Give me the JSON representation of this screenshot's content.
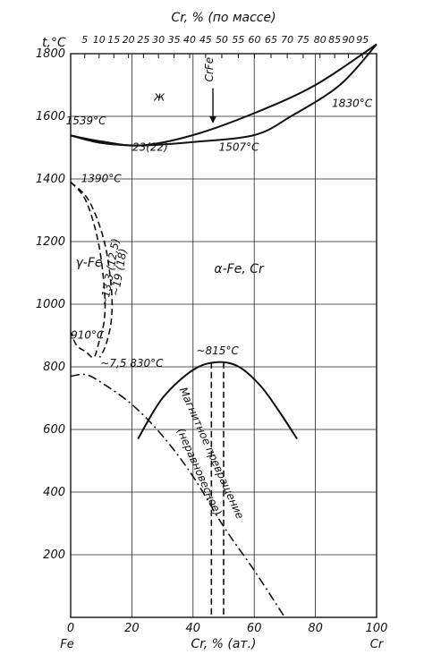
{
  "chart_data": {
    "type": "line",
    "title": "",
    "top_axis": {
      "label": "Cr, % (по массе)",
      "ticks": [
        "5",
        "10",
        "15",
        "20",
        "25",
        "30",
        "35",
        "40",
        "45",
        "50",
        "55",
        "60",
        "65",
        "70",
        "75",
        "80",
        "85",
        "90",
        "95"
      ],
      "ticks_at_pct": [
        4.6,
        9.3,
        14.1,
        18.9,
        23.8,
        28.7,
        33.8,
        38.9,
        44.1,
        49.4,
        54.8,
        60.1,
        65.5,
        70.8,
        76.0,
        81.5,
        86.3,
        90.8,
        95.4
      ]
    },
    "x_axis": {
      "label": "Cr, % (ат.)",
      "range": [
        0,
        100
      ],
      "ticks": [
        0,
        20,
        40,
        60,
        80,
        100
      ],
      "tick_labels": [
        "0",
        "20",
        "40",
        "60",
        "80",
        "100"
      ],
      "left_end_label": "Fe",
      "right_end_label": "Cr"
    },
    "y_axis": {
      "label": "t,°C",
      "range": [
        0,
        1800
      ],
      "ticks": [
        200,
        400,
        600,
        800,
        1000,
        1200,
        1400,
        1600,
        1800
      ],
      "tick_labels": [
        "200",
        "400",
        "600",
        "800",
        "1000",
        "1200",
        "1400",
        "1600",
        "1800"
      ]
    },
    "grid": {
      "vertical_at_pct": [
        20.0,
        40.0,
        60.0,
        80.0
      ],
      "horizontal_every": 200,
      "vertical_at": [
        5.0,
        10.8,
        18.0,
        24.2,
        29.5,
        35.6,
        41.8,
        47.0,
        54.7,
        64.0,
        74.0,
        86.0,
        97.0
      ]
    },
    "series": [
      {
        "style": "solid",
        "points": [
          [
            0,
            1539
          ],
          [
            10,
            1520
          ],
          [
            23,
            1507
          ],
          [
            40,
            1540
          ],
          [
            60,
            1610
          ],
          [
            80,
            1700
          ],
          [
            100,
            1830
          ]
        ]
      },
      {
        "style": "solid",
        "points": [
          [
            0,
            1539
          ],
          [
            10,
            1515
          ],
          [
            23,
            1507
          ],
          [
            40,
            1518
          ],
          [
            60,
            1540
          ],
          [
            72,
            1600
          ],
          [
            88,
            1700
          ],
          [
            100,
            1830
          ]
        ]
      },
      {
        "style": "dashed",
        "points": [
          [
            72,
            1600
          ],
          [
            88,
            1700
          ],
          [
            100,
            1830
          ]
        ]
      },
      {
        "style": "dashed",
        "points": [
          [
            0,
            1390
          ],
          [
            5,
            1330
          ],
          [
            9,
            1200
          ],
          [
            11,
            1050
          ],
          [
            11,
            950
          ],
          [
            9,
            870
          ],
          [
            7.5,
            830
          ],
          [
            5,
            848
          ],
          [
            2,
            868
          ],
          [
            0,
            910
          ]
        ]
      },
      {
        "style": "dashed",
        "points": [
          [
            0,
            1390
          ],
          [
            6,
            1330
          ],
          [
            11,
            1200
          ],
          [
            13.3,
            1050
          ],
          [
            13.3,
            950
          ],
          [
            11.5,
            870
          ],
          [
            9.5,
            830
          ]
        ]
      },
      {
        "style": "solid",
        "points": [
          [
            22,
            570
          ],
          [
            30,
            700
          ],
          [
            40,
            790
          ],
          [
            48,
            815
          ],
          [
            55,
            800
          ],
          [
            62,
            740
          ],
          [
            68,
            660
          ],
          [
            74,
            570
          ]
        ]
      },
      {
        "style": "dashed",
        "points": [
          [
            46,
            815
          ],
          [
            46,
            0
          ]
        ]
      },
      {
        "style": "dashed",
        "points": [
          [
            50,
            815
          ],
          [
            50,
            0
          ]
        ]
      },
      {
        "style": "dashdot",
        "points": [
          [
            0,
            770
          ],
          [
            5,
            775
          ],
          [
            10,
            750
          ],
          [
            20,
            680
          ],
          [
            30,
            580
          ],
          [
            40,
            450
          ],
          [
            50,
            290
          ],
          [
            60,
            150
          ],
          [
            70,
            0
          ]
        ]
      }
    ],
    "annotations": [
      {
        "text": "ж",
        "x": 29,
        "y": 1650
      },
      {
        "text": "CrFe",
        "x": 46.5,
        "y": 1710
      },
      {
        "text": "1539°C",
        "x": 5,
        "y": 1575
      },
      {
        "text": "23(22)",
        "x": 26,
        "y": 1490
      },
      {
        "text": "1507°C",
        "x": 55,
        "y": 1490
      },
      {
        "text": "1830°C",
        "x": 92,
        "y": 1630
      },
      {
        "text": "1390°C",
        "x": 10,
        "y": 1390
      },
      {
        "text": "γ-Fe",
        "x": 6,
        "y": 1120
      },
      {
        "text": "~13,3 (12,5)",
        "x": 14,
        "y": 1100
      },
      {
        "text": "~19 (18)",
        "x": 17,
        "y": 1100
      },
      {
        "text": "α-Fe, Cr",
        "x": 55,
        "y": 1100
      },
      {
        "text": "910°C",
        "x": 5.5,
        "y": 890
      },
      {
        "text": "~7,5 830°C",
        "x": 20,
        "y": 800
      },
      {
        "text": "~815°C",
        "x": 48,
        "y": 840
      },
      {
        "text": "Магнитное превращение",
        "x": 45,
        "y": 520
      },
      {
        "text": "(неравновесное)",
        "x": 41,
        "y": 460
      }
    ]
  }
}
